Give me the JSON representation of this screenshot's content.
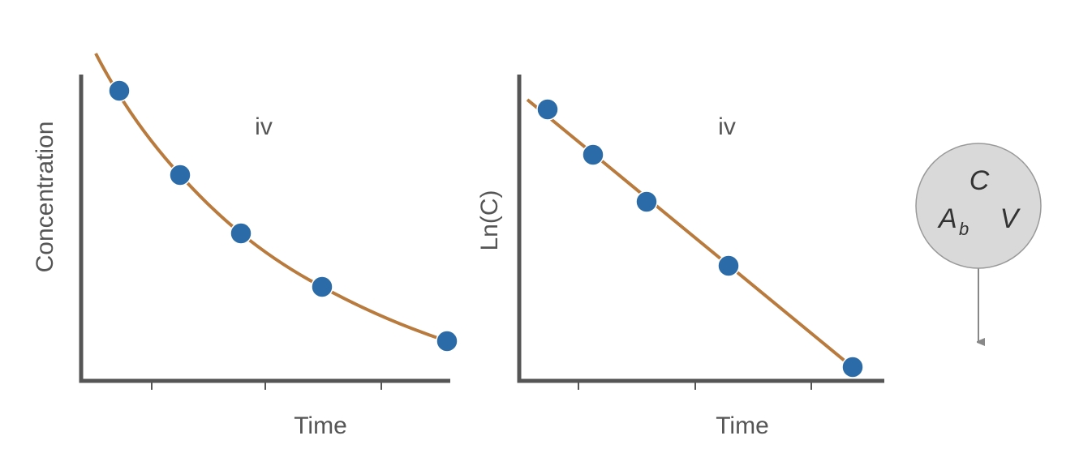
{
  "panels": [
    {
      "title": "iv",
      "x_label": "Time",
      "y_label": "Concentration"
    },
    {
      "title": "iv",
      "x_label": "Time",
      "y_label": "Ln(C)"
    }
  ],
  "compartment": {
    "top": "C",
    "left": "A",
    "left_subscript": "b",
    "right": "V"
  }
}
